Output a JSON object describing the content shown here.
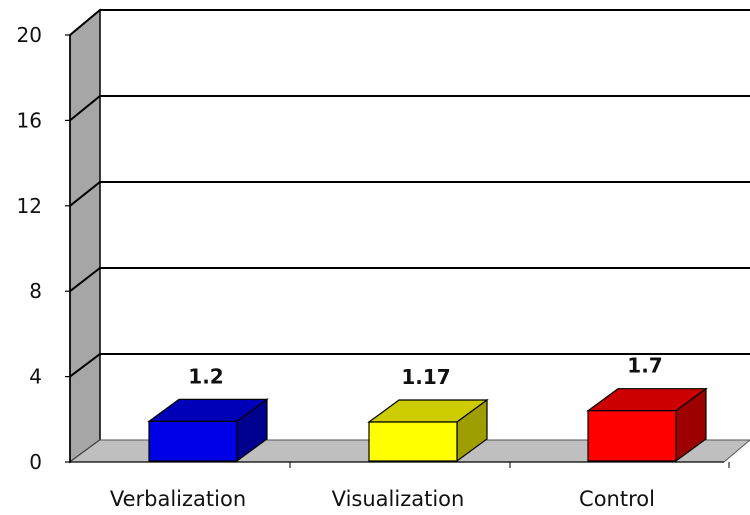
{
  "chart_data": {
    "type": "bar",
    "categories": [
      "Verbalization",
      "Visualization",
      "Control"
    ],
    "values": [
      1.2,
      1.17,
      1.7
    ],
    "data_labels": [
      "1.2",
      "1.17",
      "1.7"
    ],
    "ylim": [
      0,
      20
    ],
    "yticks": [
      0,
      4,
      8,
      12,
      16,
      20
    ],
    "ytick_labels": [
      "0",
      "4",
      "8",
      "12",
      "16",
      "20"
    ],
    "bar_colors": [
      "#0000e6",
      "#ffff00",
      "#ff0000"
    ],
    "grid": true,
    "style": "3d"
  }
}
